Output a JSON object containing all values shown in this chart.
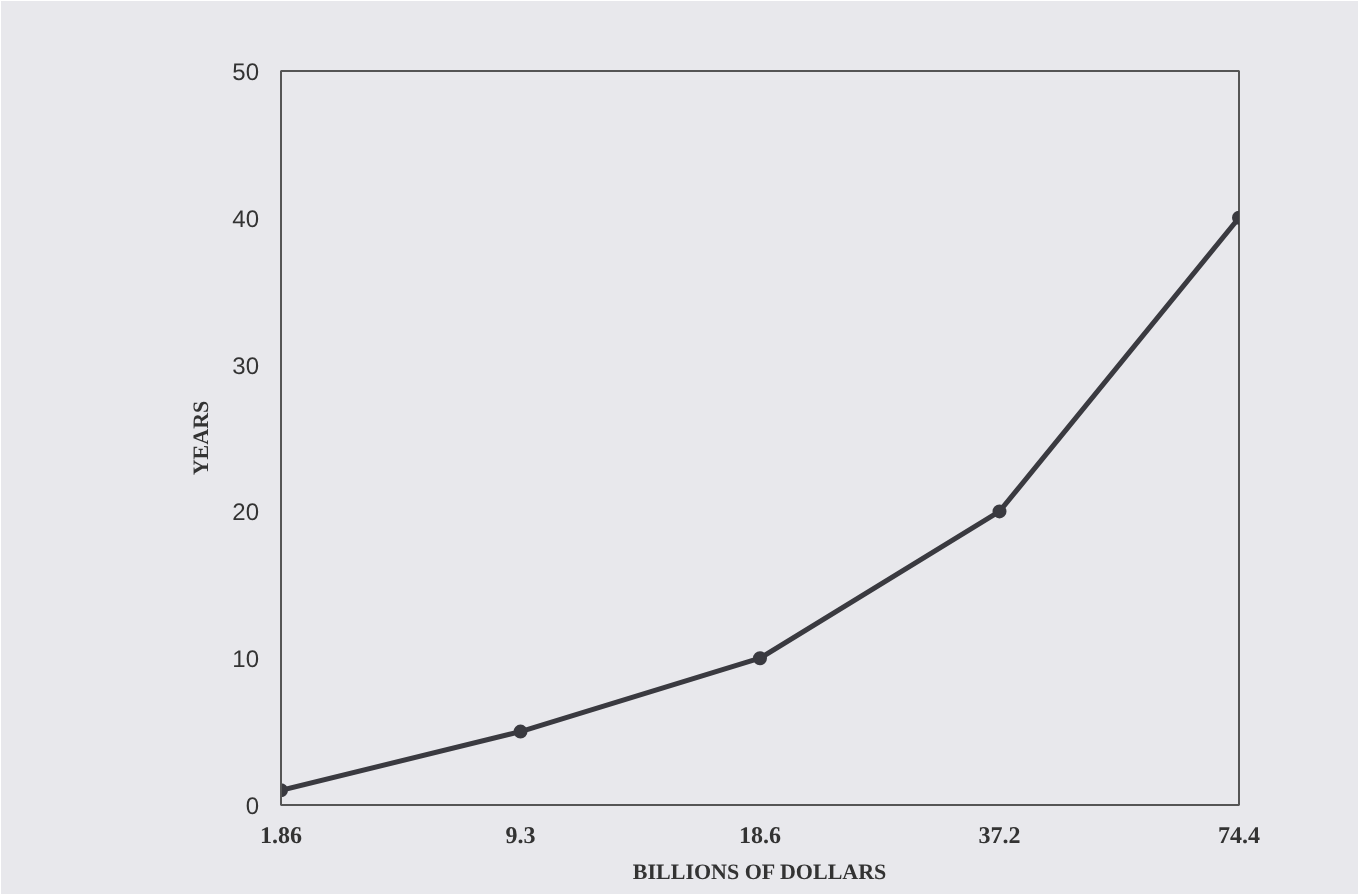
{
  "chart_data": {
    "type": "line",
    "xlabel": "BILLIONS OF DOLLARS",
    "ylabel": "YEARS",
    "categories": [
      "1.86",
      "9.3",
      "18.6",
      "37.2",
      "74.4"
    ],
    "series": [
      {
        "color": "#3a3a40",
        "values": [
          1,
          5,
          10,
          20,
          40
        ]
      }
    ],
    "ylim": [
      0,
      50
    ],
    "yticks": [
      0,
      10,
      20,
      30,
      40,
      50
    ],
    "grid": false,
    "marker": "circle",
    "line_style": "solid"
  }
}
